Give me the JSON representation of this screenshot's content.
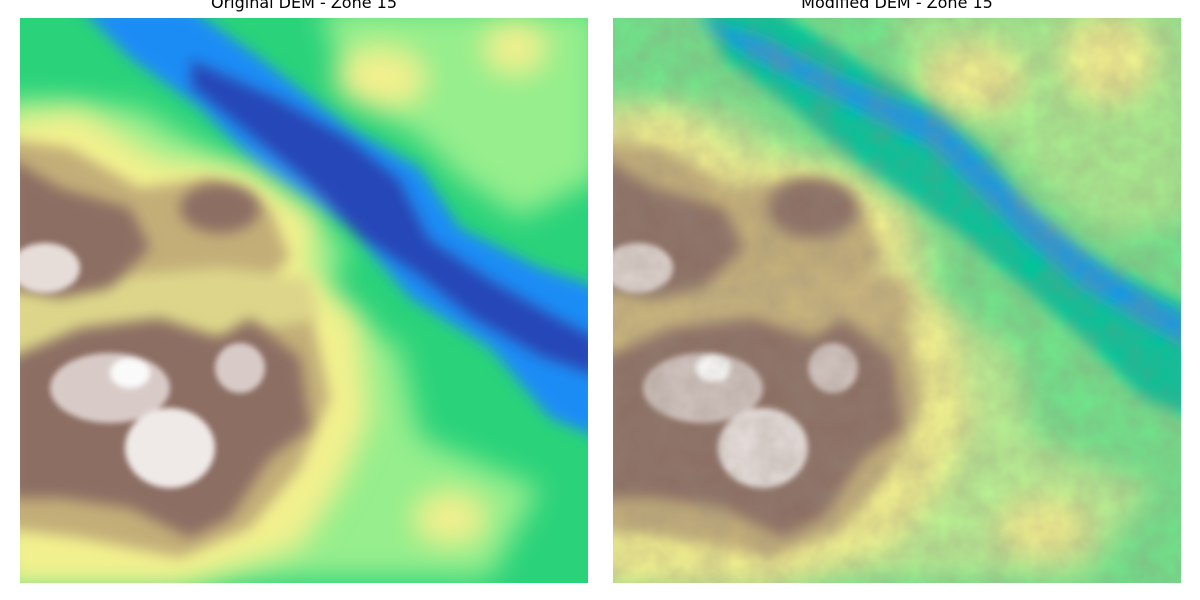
{
  "panels": [
    {
      "title": "Original DEM - Zone 15"
    },
    {
      "title": "Modified DEM - Zone 15"
    }
  ],
  "colormap": "terrain",
  "colors": {
    "deep_water": "#2846b8",
    "water": "#1e8cf5",
    "shallow": "#00b4b4",
    "lowland": "#2ad27a",
    "plain": "#96ee8c",
    "upland": "#f2f08e",
    "hills": "#c3ae78",
    "mountains": "#8c6e64",
    "peaks": "#fafafa"
  }
}
